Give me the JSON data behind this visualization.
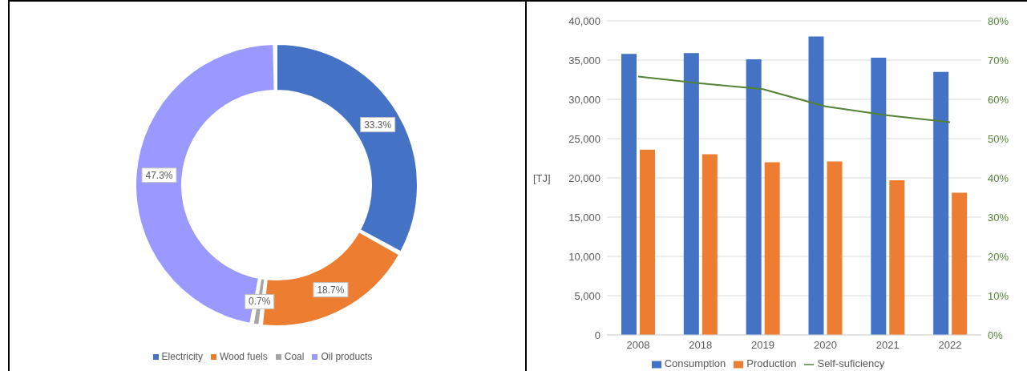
{
  "chart_data": [
    {
      "type": "donut",
      "categories": [
        "Electricity",
        "Wood fuels",
        "Coal",
        "Oil products"
      ],
      "values": [
        33.3,
        18.7,
        0.7,
        47.3
      ],
      "colors": [
        "#4472c4",
        "#ed7d31",
        "#a5a5a5",
        "#9999ff"
      ],
      "value_labels": [
        "33.3%",
        "18.7%",
        "0.7%",
        "47.3%"
      ],
      "legend": "bottom"
    },
    {
      "type": "bar",
      "categories": [
        "2008",
        "2018",
        "2019",
        "2020",
        "2021",
        "2022"
      ],
      "ylabel": "[TJ]",
      "ylim": [
        0,
        40000
      ],
      "yticks": [
        {
          "value": 0,
          "label": "0"
        },
        {
          "value": 5000,
          "label": "5,000"
        },
        {
          "value": 10000,
          "label": "10,000"
        },
        {
          "value": 15000,
          "label": "15,000"
        },
        {
          "value": 20000,
          "label": "20,000"
        },
        {
          "value": 25000,
          "label": "25,000"
        },
        {
          "value": 30000,
          "label": "30,000"
        },
        {
          "value": 35000,
          "label": "35,000"
        },
        {
          "value": 40000,
          "label": "40,000"
        }
      ],
      "y2lim": [
        0,
        80
      ],
      "y2ticks": [
        {
          "value": 0,
          "label": "0%"
        },
        {
          "value": 10,
          "label": "10%"
        },
        {
          "value": 20,
          "label": "20%"
        },
        {
          "value": 30,
          "label": "30%"
        },
        {
          "value": 40,
          "label": "40%"
        },
        {
          "value": 50,
          "label": "50%"
        },
        {
          "value": 60,
          "label": "60%"
        },
        {
          "value": 70,
          "label": "70%"
        },
        {
          "value": 80,
          "label": "80%"
        }
      ],
      "grid": "y",
      "legend": "bottom",
      "series": [
        {
          "name": "Consumption",
          "color": "#4472c4",
          "values": [
            35800,
            35900,
            35100,
            38000,
            35300,
            33500
          ]
        },
        {
          "name": "Production",
          "color": "#ed7d31",
          "values": [
            23600,
            23000,
            22000,
            22100,
            19700,
            18100
          ]
        },
        {
          "name": "Self-suficiency",
          "type": "line",
          "axis": "y2",
          "color": "#548235",
          "marker": "none",
          "values": [
            65.8,
            64.1,
            62.6,
            58.2,
            55.9,
            54.2
          ]
        }
      ]
    }
  ]
}
